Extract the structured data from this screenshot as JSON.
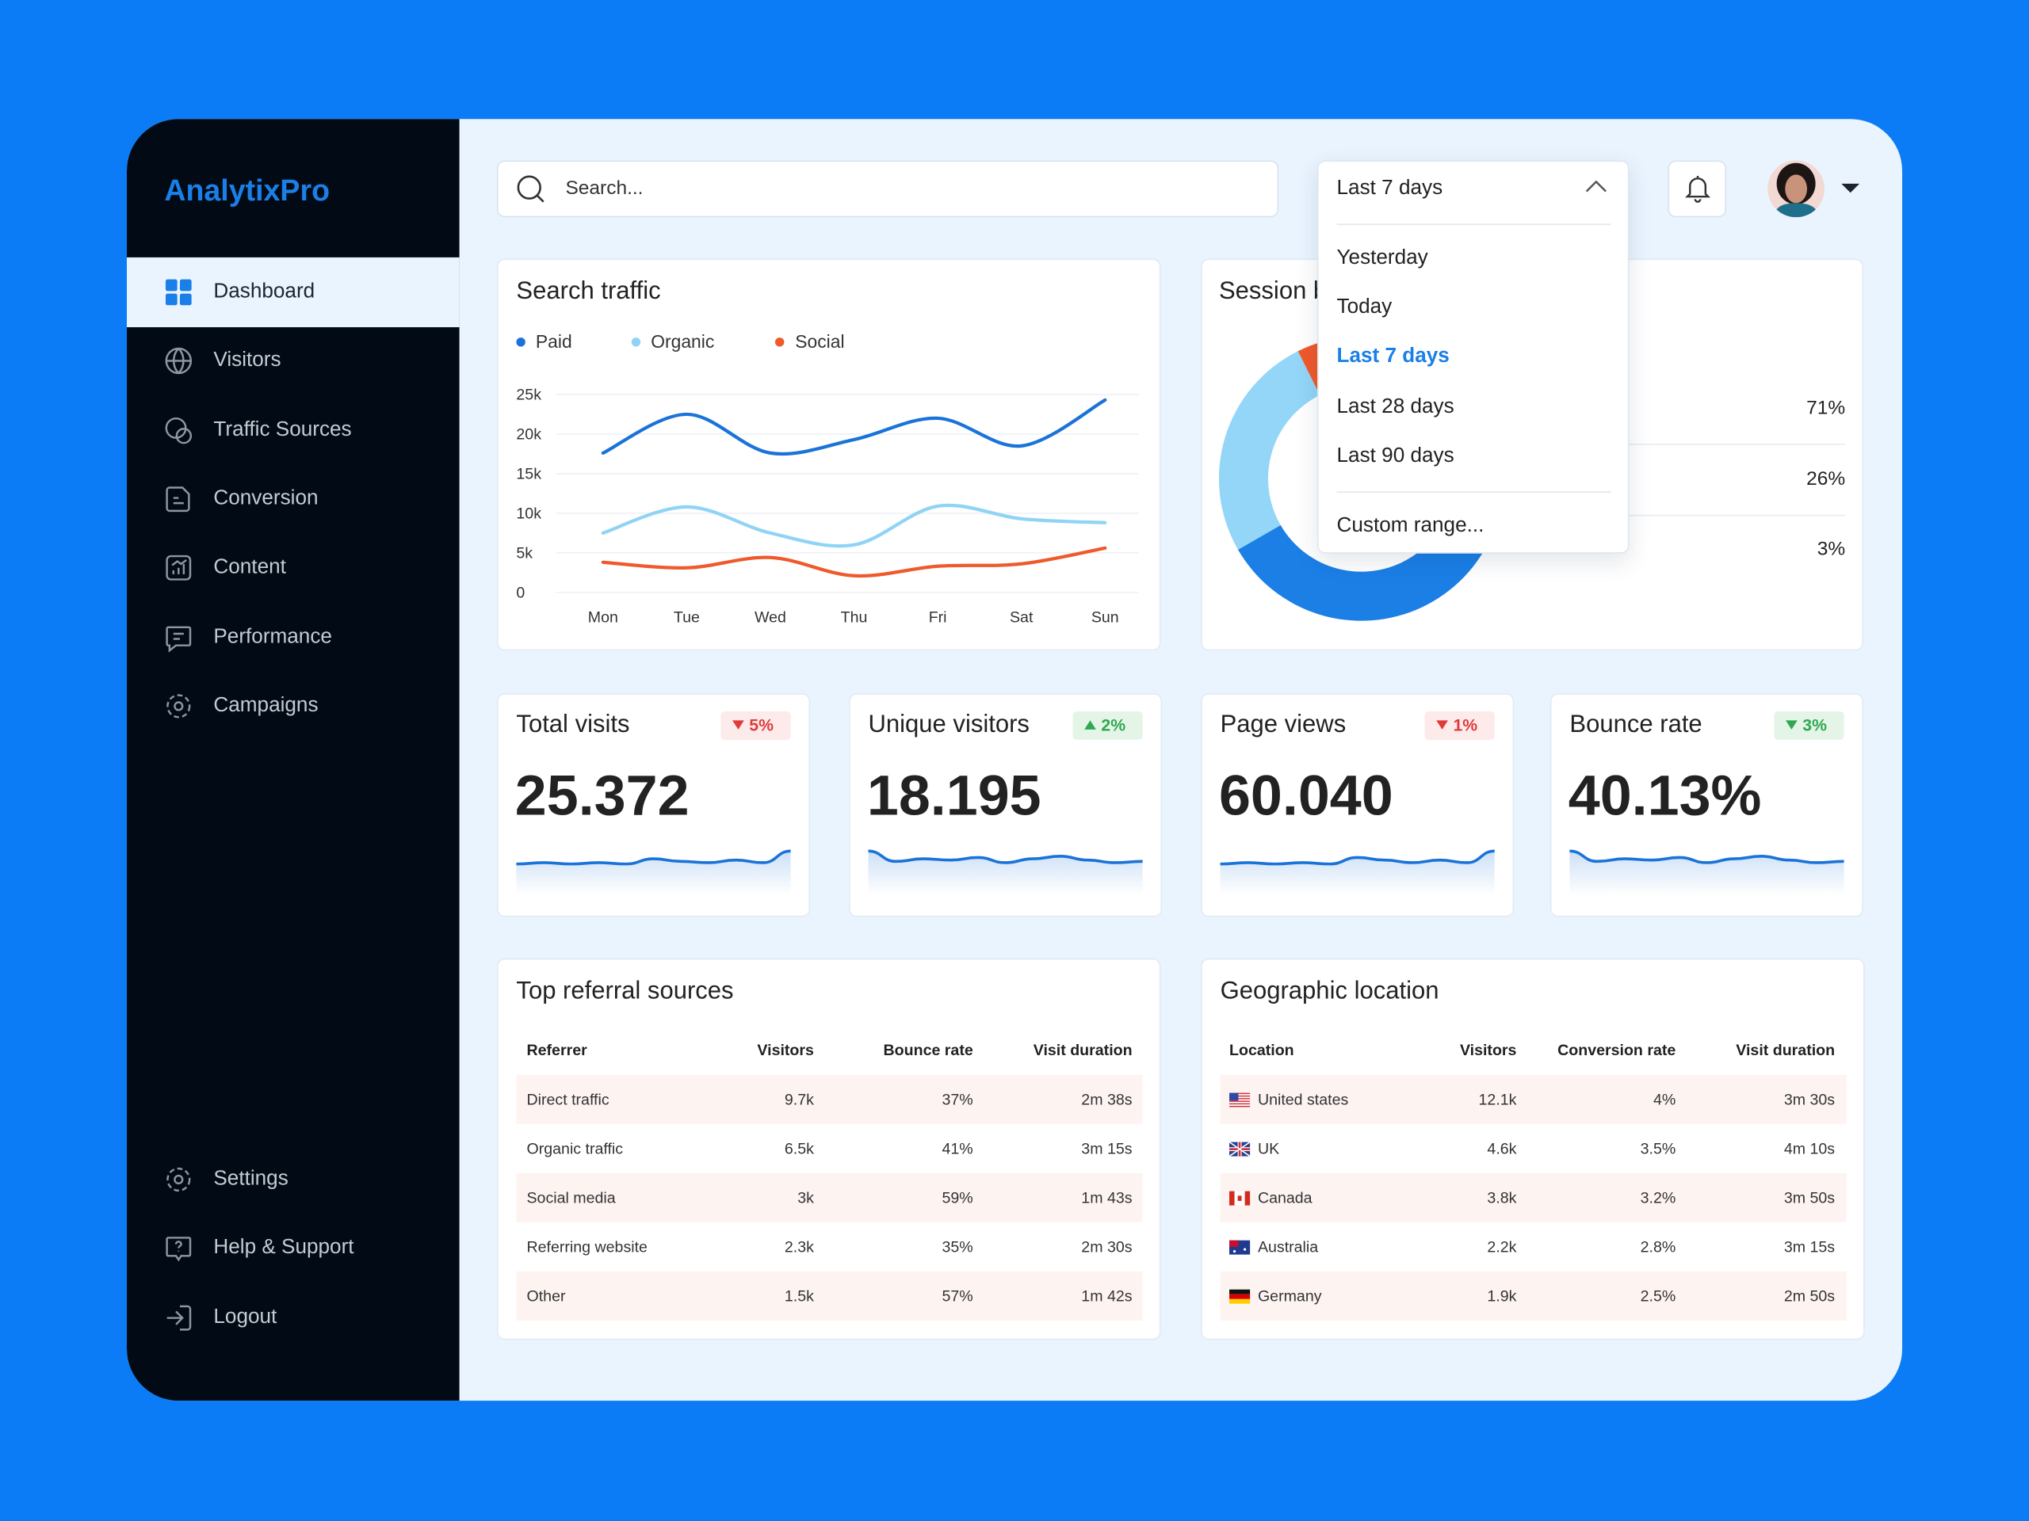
{
  "brand": "AnalytixPro",
  "nav": [
    {
      "label": "Dashboard",
      "active": true
    },
    {
      "label": "Visitors",
      "active": false
    },
    {
      "label": "Traffic Sources",
      "active": false
    },
    {
      "label": "Conversion",
      "active": false
    },
    {
      "label": "Content",
      "active": false
    },
    {
      "label": "Performance",
      "active": false
    },
    {
      "label": "Campaigns",
      "active": false
    }
  ],
  "bottom_nav": [
    "Settings",
    "Help & Support",
    "Logout"
  ],
  "search_placeholder": "Search...",
  "date_filter": {
    "selected": "Last 7 days",
    "options": [
      "Yesterday",
      "Today",
      "Last 7 days",
      "Last 28 days",
      "Last 90 days"
    ],
    "custom": "Custom range..."
  },
  "chart_data": [
    {
      "type": "line",
      "title": "Search traffic",
      "categories": [
        "Mon",
        "Tue",
        "Wed",
        "Thu",
        "Fri",
        "Sat",
        "Sun"
      ],
      "series": [
        {
          "name": "Paid",
          "color": "#1a73d9",
          "values": [
            17600,
            22500,
            17600,
            19300,
            22000,
            18500,
            24300
          ]
        },
        {
          "name": "Organic",
          "color": "#8fd3f5",
          "values": [
            7500,
            10800,
            7500,
            6000,
            10900,
            9300,
            8800
          ]
        },
        {
          "name": "Social",
          "color": "#ee5a2c",
          "values": [
            3800,
            3100,
            4400,
            2100,
            3300,
            3600,
            5600
          ]
        }
      ],
      "ylim": [
        0,
        25000
      ],
      "yticks": [
        0,
        {
          "value": 5000,
          "label": "5k"
        },
        {
          "value": 10000,
          "label": "10k"
        },
        {
          "value": 15000,
          "label": "15k"
        },
        {
          "value": 20000,
          "label": "20k"
        },
        {
          "value": 25000,
          "label": "25k"
        }
      ],
      "grid": true,
      "legend": "top-left"
    },
    {
      "type": "pie",
      "title": "Session breakdown",
      "values": [
        71,
        26,
        3
      ],
      "value_labels": [
        "71%",
        "26%",
        "3%"
      ],
      "colors": [
        "#1b7fe6",
        "#93d6f7",
        "#f0592b"
      ],
      "donut": true
    }
  ],
  "kpis": [
    {
      "title": "Total visits",
      "value": "25.372",
      "change": "5%",
      "trend": "down",
      "good": false
    },
    {
      "title": "Unique visitors",
      "value": "18.195",
      "change": "2%",
      "trend": "up",
      "good": true
    },
    {
      "title": "Page views",
      "value": "60.040",
      "change": "1%",
      "trend": "down",
      "good": false
    },
    {
      "title": "Bounce rate",
      "value": "40.13%",
      "change": "3%",
      "trend": "down",
      "good": true
    }
  ],
  "referrals": {
    "title": "Top referral sources",
    "columns": [
      "Referrer",
      "Visitors",
      "Bounce rate",
      "Visit duration"
    ],
    "rows": [
      [
        "Direct traffic",
        "9.7k",
        "37%",
        "2m 38s"
      ],
      [
        "Organic traffic",
        "6.5k",
        "41%",
        "3m 15s"
      ],
      [
        "Social media",
        "3k",
        "59%",
        "1m 43s"
      ],
      [
        "Referring website",
        "2.3k",
        "35%",
        "2m 30s"
      ],
      [
        "Other",
        "1.5k",
        "57%",
        "1m 42s"
      ]
    ]
  },
  "geo": {
    "title": "Geographic location",
    "columns": [
      "Location",
      "Visitors",
      "Conversion rate",
      "Visit duration"
    ],
    "rows": [
      [
        "United states",
        "12.1k",
        "4%",
        "3m 30s"
      ],
      [
        "UK",
        "4.6k",
        "3.5%",
        "4m 10s"
      ],
      [
        "Canada",
        "3.8k",
        "3.2%",
        "3m 50s"
      ],
      [
        "Australia",
        "2.2k",
        "2.8%",
        "3m 15s"
      ],
      [
        "Germany",
        "1.9k",
        "2.5%",
        "2m 50s"
      ]
    ]
  }
}
